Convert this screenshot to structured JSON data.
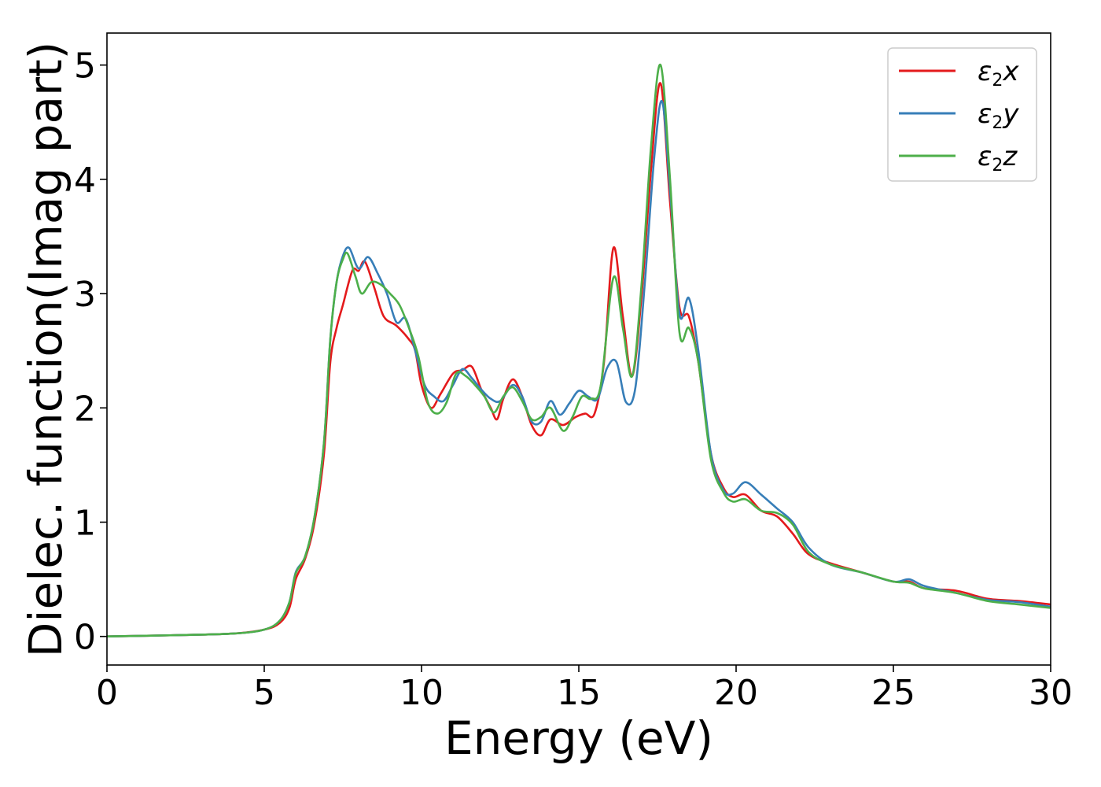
{
  "chart_data": {
    "type": "line",
    "title": "",
    "xlabel": "Energy (eV)",
    "ylabel": "Dielec. function(Imag part)",
    "xlim": [
      0,
      30
    ],
    "ylim": [
      -0.25,
      5.28
    ],
    "xticks": [
      0,
      5,
      10,
      15,
      20,
      25,
      30
    ],
    "xtick_labels": [
      "0",
      "5",
      "10",
      "15",
      "20",
      "25",
      "30"
    ],
    "yticks": [
      0,
      1,
      2,
      3,
      4,
      5
    ],
    "ytick_labels": [
      "0",
      "1",
      "2",
      "3",
      "4",
      "5"
    ],
    "grid": false,
    "legend_position": "top-right",
    "series": [
      {
        "name": "ε2x",
        "legend_main": "ε",
        "legend_sub": "2",
        "legend_tail": "x",
        "color": "#e41a1c",
        "points": [
          [
            0,
            0
          ],
          [
            2,
            0.01
          ],
          [
            4,
            0.025
          ],
          [
            5,
            0.06
          ],
          [
            5.5,
            0.12
          ],
          [
            5.8,
            0.25
          ],
          [
            6,
            0.5
          ],
          [
            6.3,
            0.68
          ],
          [
            6.6,
            1.0
          ],
          [
            6.9,
            1.6
          ],
          [
            7.1,
            2.4
          ],
          [
            7.3,
            2.7
          ],
          [
            7.5,
            2.9
          ],
          [
            7.8,
            3.2
          ],
          [
            8.0,
            3.2
          ],
          [
            8.2,
            3.28
          ],
          [
            8.5,
            3.05
          ],
          [
            8.8,
            2.8
          ],
          [
            9.2,
            2.72
          ],
          [
            9.6,
            2.6
          ],
          [
            9.8,
            2.5
          ],
          [
            10.0,
            2.2
          ],
          [
            10.3,
            2.0
          ],
          [
            10.6,
            2.12
          ],
          [
            11.0,
            2.3
          ],
          [
            11.3,
            2.33
          ],
          [
            11.6,
            2.36
          ],
          [
            11.9,
            2.16
          ],
          [
            12.2,
            2.0
          ],
          [
            12.4,
            1.9
          ],
          [
            12.6,
            2.08
          ],
          [
            12.9,
            2.25
          ],
          [
            13.2,
            2.1
          ],
          [
            13.5,
            1.85
          ],
          [
            13.8,
            1.76
          ],
          [
            14.1,
            1.9
          ],
          [
            14.5,
            1.85
          ],
          [
            14.9,
            1.92
          ],
          [
            15.2,
            1.95
          ],
          [
            15.5,
            1.95
          ],
          [
            15.8,
            2.4
          ],
          [
            16.1,
            3.4
          ],
          [
            16.4,
            2.8
          ],
          [
            16.7,
            2.28
          ],
          [
            17.0,
            3.0
          ],
          [
            17.3,
            4.1
          ],
          [
            17.6,
            4.84
          ],
          [
            17.9,
            3.8
          ],
          [
            18.2,
            2.88
          ],
          [
            18.5,
            2.8
          ],
          [
            18.8,
            2.4
          ],
          [
            19.2,
            1.6
          ],
          [
            19.6,
            1.3
          ],
          [
            19.9,
            1.22
          ],
          [
            20.3,
            1.24
          ],
          [
            20.8,
            1.1
          ],
          [
            21.3,
            1.05
          ],
          [
            21.8,
            0.9
          ],
          [
            22.3,
            0.72
          ],
          [
            23.0,
            0.64
          ],
          [
            24.0,
            0.56
          ],
          [
            25.0,
            0.48
          ],
          [
            25.5,
            0.48
          ],
          [
            26.0,
            0.42
          ],
          [
            27.0,
            0.4
          ],
          [
            28.0,
            0.33
          ],
          [
            29.0,
            0.31
          ],
          [
            30.0,
            0.28
          ]
        ]
      },
      {
        "name": "ε2y",
        "legend_main": "ε",
        "legend_sub": "2",
        "legend_tail": "y",
        "color": "#377eb8",
        "points": [
          [
            0,
            0
          ],
          [
            2,
            0.01
          ],
          [
            4,
            0.025
          ],
          [
            5,
            0.06
          ],
          [
            5.5,
            0.14
          ],
          [
            5.8,
            0.3
          ],
          [
            6,
            0.56
          ],
          [
            6.3,
            0.7
          ],
          [
            6.6,
            1.05
          ],
          [
            6.9,
            1.7
          ],
          [
            7.1,
            2.6
          ],
          [
            7.3,
            3.1
          ],
          [
            7.5,
            3.33
          ],
          [
            7.7,
            3.4
          ],
          [
            8.0,
            3.22
          ],
          [
            8.3,
            3.32
          ],
          [
            8.6,
            3.18
          ],
          [
            8.9,
            3.0
          ],
          [
            9.2,
            2.75
          ],
          [
            9.5,
            2.78
          ],
          [
            9.8,
            2.5
          ],
          [
            10.1,
            2.2
          ],
          [
            10.4,
            2.1
          ],
          [
            10.7,
            2.06
          ],
          [
            11.0,
            2.2
          ],
          [
            11.3,
            2.34
          ],
          [
            11.6,
            2.26
          ],
          [
            11.9,
            2.16
          ],
          [
            12.2,
            2.08
          ],
          [
            12.5,
            2.06
          ],
          [
            12.9,
            2.2
          ],
          [
            13.2,
            2.1
          ],
          [
            13.5,
            1.88
          ],
          [
            13.8,
            1.88
          ],
          [
            14.1,
            2.06
          ],
          [
            14.4,
            1.94
          ],
          [
            14.7,
            2.04
          ],
          [
            15.0,
            2.15
          ],
          [
            15.3,
            2.1
          ],
          [
            15.6,
            2.08
          ],
          [
            15.9,
            2.35
          ],
          [
            16.2,
            2.4
          ],
          [
            16.5,
            2.05
          ],
          [
            16.8,
            2.18
          ],
          [
            17.1,
            3.1
          ],
          [
            17.4,
            4.2
          ],
          [
            17.65,
            4.68
          ],
          [
            17.9,
            3.9
          ],
          [
            18.2,
            2.82
          ],
          [
            18.5,
            2.96
          ],
          [
            18.8,
            2.5
          ],
          [
            19.2,
            1.6
          ],
          [
            19.6,
            1.28
          ],
          [
            19.9,
            1.25
          ],
          [
            20.3,
            1.35
          ],
          [
            20.8,
            1.24
          ],
          [
            21.3,
            1.12
          ],
          [
            21.8,
            1.0
          ],
          [
            22.3,
            0.78
          ],
          [
            23.0,
            0.63
          ],
          [
            24.0,
            0.56
          ],
          [
            25.0,
            0.48
          ],
          [
            25.5,
            0.5
          ],
          [
            26.0,
            0.44
          ],
          [
            27.0,
            0.38
          ],
          [
            28.0,
            0.32
          ],
          [
            29.0,
            0.3
          ],
          [
            30.0,
            0.26
          ]
        ]
      },
      {
        "name": "ε2z",
        "legend_main": "ε",
        "legend_sub": "2",
        "legend_tail": "z",
        "color": "#4daf4a",
        "points": [
          [
            0,
            0
          ],
          [
            2,
            0.01
          ],
          [
            4,
            0.025
          ],
          [
            5,
            0.06
          ],
          [
            5.5,
            0.14
          ],
          [
            5.8,
            0.3
          ],
          [
            6,
            0.55
          ],
          [
            6.3,
            0.7
          ],
          [
            6.6,
            1.05
          ],
          [
            6.9,
            1.7
          ],
          [
            7.1,
            2.6
          ],
          [
            7.3,
            3.1
          ],
          [
            7.5,
            3.3
          ],
          [
            7.65,
            3.35
          ],
          [
            7.9,
            3.15
          ],
          [
            8.1,
            3.0
          ],
          [
            8.4,
            3.1
          ],
          [
            8.7,
            3.08
          ],
          [
            9.0,
            3.0
          ],
          [
            9.3,
            2.9
          ],
          [
            9.6,
            2.7
          ],
          [
            9.9,
            2.45
          ],
          [
            10.2,
            2.05
          ],
          [
            10.5,
            1.95
          ],
          [
            10.8,
            2.05
          ],
          [
            11.1,
            2.3
          ],
          [
            11.4,
            2.28
          ],
          [
            11.7,
            2.2
          ],
          [
            12.0,
            2.1
          ],
          [
            12.3,
            1.96
          ],
          [
            12.6,
            2.1
          ],
          [
            12.9,
            2.18
          ],
          [
            13.2,
            2.06
          ],
          [
            13.5,
            1.9
          ],
          [
            13.8,
            1.92
          ],
          [
            14.1,
            2.0
          ],
          [
            14.5,
            1.8
          ],
          [
            14.8,
            1.92
          ],
          [
            15.1,
            2.1
          ],
          [
            15.4,
            2.08
          ],
          [
            15.7,
            2.2
          ],
          [
            16.1,
            3.14
          ],
          [
            16.4,
            2.7
          ],
          [
            16.7,
            2.28
          ],
          [
            17.0,
            3.1
          ],
          [
            17.3,
            4.3
          ],
          [
            17.6,
            5.0
          ],
          [
            17.9,
            4.0
          ],
          [
            18.2,
            2.66
          ],
          [
            18.5,
            2.7
          ],
          [
            18.8,
            2.4
          ],
          [
            19.2,
            1.55
          ],
          [
            19.6,
            1.26
          ],
          [
            19.9,
            1.18
          ],
          [
            20.3,
            1.2
          ],
          [
            20.8,
            1.1
          ],
          [
            21.3,
            1.08
          ],
          [
            21.8,
            0.98
          ],
          [
            22.3,
            0.74
          ],
          [
            23.0,
            0.63
          ],
          [
            24.0,
            0.56
          ],
          [
            25.0,
            0.48
          ],
          [
            25.5,
            0.47
          ],
          [
            26.0,
            0.42
          ],
          [
            27.0,
            0.38
          ],
          [
            28.0,
            0.31
          ],
          [
            29.0,
            0.28
          ],
          [
            30.0,
            0.25
          ]
        ]
      }
    ]
  }
}
